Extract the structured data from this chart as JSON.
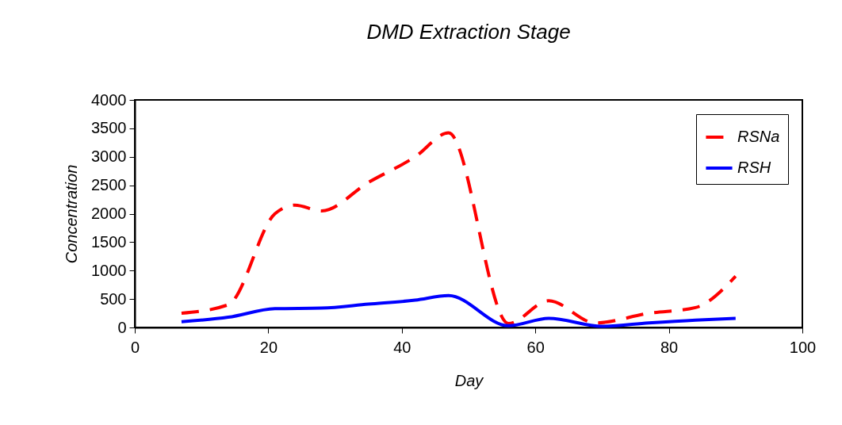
{
  "chart_data": {
    "type": "line",
    "title": "DMD Extraction Stage",
    "xlabel": "Day",
    "ylabel": "Concentration",
    "xlim": [
      0,
      100
    ],
    "xticks": [
      0,
      20,
      40,
      60,
      80,
      100
    ],
    "ylim": [
      0,
      4000
    ],
    "yticks": [
      0,
      500,
      1000,
      1500,
      2000,
      2500,
      3000,
      3500,
      4000
    ],
    "legend": "top right",
    "grid": false,
    "series": [
      {
        "name": "RSNa",
        "color": "#ff0000",
        "line_style": "dashed",
        "x": [
          7,
          14,
          21,
          24,
          28,
          35,
          42,
          47,
          56,
          62,
          69,
          77,
          84,
          90
        ],
        "values": [
          250,
          400,
          2000,
          2150,
          2050,
          2550,
          3000,
          3420,
          70,
          470,
          80,
          250,
          350,
          900
        ]
      },
      {
        "name": "RSH",
        "color": "#0000ff",
        "line_style": "solid",
        "x": [
          7,
          14,
          21,
          28,
          35,
          42,
          47,
          56,
          62,
          70,
          77,
          84,
          90
        ],
        "values": [
          100,
          180,
          330,
          340,
          410,
          480,
          560,
          30,
          160,
          20,
          80,
          130,
          160
        ]
      }
    ]
  }
}
